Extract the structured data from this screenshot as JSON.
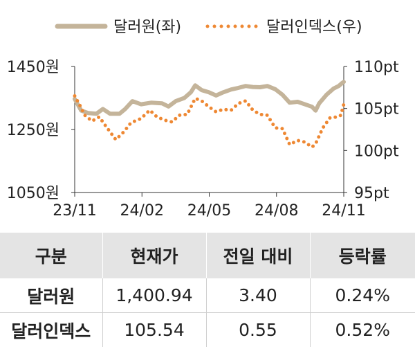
{
  "chart_data": {
    "type": "line",
    "legend": {
      "placement": "top"
    },
    "x_tick_labels": [
      "23/11",
      "24/02",
      "24/05",
      "24/08",
      "24/11"
    ],
    "x_range": [
      "2023-11-01",
      "2024-11-08"
    ],
    "y_left": {
      "unit": "원",
      "range": [
        1050,
        1450
      ],
      "ticks": [
        1050,
        1250,
        1450
      ],
      "tick_labels": [
        "1050원",
        "1250원",
        "1450원"
      ]
    },
    "y_right": {
      "unit": "pt",
      "range": [
        95,
        110
      ],
      "ticks": [
        95,
        100,
        105,
        110
      ],
      "tick_labels": [
        "95pt",
        "100pt",
        "105pt",
        "110pt"
      ]
    },
    "grid": false,
    "series": [
      {
        "name": "달러원(좌)",
        "axis": "left",
        "style": "solid",
        "color": "#c4b49a",
        "points": [
          [
            "2023-11-01",
            1347
          ],
          [
            "2023-11-10",
            1310
          ],
          [
            "2023-11-20",
            1302
          ],
          [
            "2023-12-01",
            1300
          ],
          [
            "2023-12-10",
            1315
          ],
          [
            "2023-12-20",
            1300
          ],
          [
            "2024-01-02",
            1300
          ],
          [
            "2024-01-10",
            1315
          ],
          [
            "2024-01-20",
            1340
          ],
          [
            "2024-02-01",
            1330
          ],
          [
            "2024-02-15",
            1335
          ],
          [
            "2024-03-01",
            1333
          ],
          [
            "2024-03-10",
            1323
          ],
          [
            "2024-03-20",
            1340
          ],
          [
            "2024-04-01",
            1350
          ],
          [
            "2024-04-10",
            1368
          ],
          [
            "2024-04-16",
            1390
          ],
          [
            "2024-04-25",
            1375
          ],
          [
            "2024-05-05",
            1368
          ],
          [
            "2024-05-15",
            1358
          ],
          [
            "2024-05-25",
            1368
          ],
          [
            "2024-06-05",
            1377
          ],
          [
            "2024-06-15",
            1382
          ],
          [
            "2024-06-25",
            1388
          ],
          [
            "2024-07-05",
            1385
          ],
          [
            "2024-07-15",
            1384
          ],
          [
            "2024-07-25",
            1388
          ],
          [
            "2024-08-05",
            1378
          ],
          [
            "2024-08-15",
            1360
          ],
          [
            "2024-08-25",
            1335
          ],
          [
            "2024-09-05",
            1338
          ],
          [
            "2024-09-15",
            1330
          ],
          [
            "2024-09-25",
            1322
          ],
          [
            "2024-09-30",
            1310
          ],
          [
            "2024-10-05",
            1333
          ],
          [
            "2024-10-15",
            1360
          ],
          [
            "2024-10-25",
            1380
          ],
          [
            "2024-11-01",
            1388
          ],
          [
            "2024-11-06",
            1398
          ],
          [
            "2024-11-08",
            1401
          ]
        ]
      },
      {
        "name": "달러인덱스(우)",
        "axis": "right",
        "style": "dotted",
        "color": "#ee8833",
        "points": [
          [
            "2023-11-01",
            106.5
          ],
          [
            "2023-11-08",
            105.4
          ],
          [
            "2023-11-15",
            104.2
          ],
          [
            "2023-11-25",
            103.5
          ],
          [
            "2023-12-05",
            104.0
          ],
          [
            "2023-12-15",
            102.8
          ],
          [
            "2023-12-28",
            101.3
          ],
          [
            "2024-01-08",
            102.2
          ],
          [
            "2024-01-18",
            103.3
          ],
          [
            "2024-02-01",
            103.8
          ],
          [
            "2024-02-13",
            104.8
          ],
          [
            "2024-02-23",
            104.0
          ],
          [
            "2024-03-05",
            103.6
          ],
          [
            "2024-03-15",
            103.4
          ],
          [
            "2024-03-25",
            104.2
          ],
          [
            "2024-04-05",
            104.3
          ],
          [
            "2024-04-16",
            106.2
          ],
          [
            "2024-04-25",
            105.9
          ],
          [
            "2024-05-05",
            105.2
          ],
          [
            "2024-05-15",
            104.6
          ],
          [
            "2024-05-25",
            104.9
          ],
          [
            "2024-06-05",
            104.8
          ],
          [
            "2024-06-15",
            105.6
          ],
          [
            "2024-06-25",
            105.9
          ],
          [
            "2024-07-05",
            104.8
          ],
          [
            "2024-07-15",
            104.3
          ],
          [
            "2024-07-25",
            104.2
          ],
          [
            "2024-08-05",
            102.7
          ],
          [
            "2024-08-15",
            102.6
          ],
          [
            "2024-08-25",
            100.7
          ],
          [
            "2024-09-05",
            101.2
          ],
          [
            "2024-09-15",
            101.0
          ],
          [
            "2024-09-25",
            100.4
          ],
          [
            "2024-09-30",
            100.8
          ],
          [
            "2024-10-10",
            102.7
          ],
          [
            "2024-10-20",
            103.9
          ],
          [
            "2024-10-31",
            104.0
          ],
          [
            "2024-11-04",
            104.2
          ],
          [
            "2024-11-08",
            105.5
          ]
        ]
      }
    ]
  },
  "table": {
    "headers": [
      "구분",
      "현재가",
      "전일 대비",
      "등락률"
    ],
    "rows": [
      [
        "달러원",
        "1,400.94",
        "3.40",
        "0.24%"
      ],
      [
        "달러인덱스",
        "105.54",
        "0.55",
        "0.52%"
      ]
    ]
  }
}
